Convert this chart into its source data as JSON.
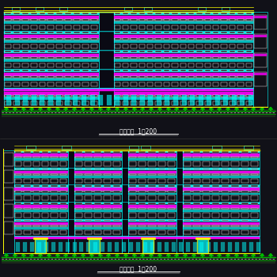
{
  "bg_color": "#111118",
  "cyan": "#00ffff",
  "magenta": "#ff00ff",
  "yellow": "#ffff00",
  "white": "#ffffff",
  "green": "#00bb00",
  "dark_bg": "#111118",
  "floor_bg": "#1a1a2a",
  "title1": "北立面图  1：200",
  "title2": "南立面图  1：200"
}
